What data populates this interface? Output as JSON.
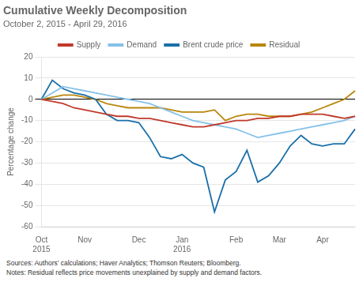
{
  "chart_data": {
    "type": "line",
    "title": "Cumulative Weekly Decomposition",
    "subtitle": "October 2, 2015 - April 29, 2016",
    "ylabel": "Percentage change",
    "annotations": [
      "Sources: Authors’ calculations; Haver Analytics; Thomson Reuters; Bloomberg.",
      "Notes: Residual reflects price movements unexplained by supply and demand factors."
    ],
    "categories": [
      "Oct\n2015",
      null,
      null,
      null,
      "Nov",
      null,
      null,
      null,
      null,
      "Dec",
      null,
      null,
      null,
      "Jan\n2016",
      null,
      null,
      null,
      null,
      "Feb",
      null,
      null,
      null,
      "Mar",
      null,
      null,
      null,
      "Apr",
      null,
      null,
      null
    ],
    "series": [
      {
        "name": "Supply",
        "color": "#c0392b",
        "values": [
          0,
          -1,
          -2,
          -4,
          -5,
          -6,
          -7,
          -8,
          -8,
          -9,
          -9,
          -10,
          -11,
          -12,
          -13,
          -13,
          -12,
          -11,
          -10,
          -10,
          -9,
          -9,
          -8,
          -8,
          -7,
          -7,
          -7,
          -8,
          -9,
          -8
        ]
      },
      {
        "name": "Demand",
        "color": "#85c1e9",
        "values": [
          0,
          3,
          6,
          5,
          4,
          3,
          2,
          1,
          0,
          -1,
          -2,
          -4,
          -6,
          -8,
          -10,
          -11,
          -12,
          -13,
          -14,
          -16,
          -18,
          -17,
          -16,
          -15,
          -14,
          -13,
          -12,
          -11,
          -10,
          -8
        ]
      },
      {
        "name": "Brent crude price",
        "color": "#1a6fa8",
        "values": [
          0,
          9,
          5,
          3,
          2,
          0,
          -7,
          -10,
          -10,
          -11,
          -18,
          -27,
          -28,
          -26,
          -30,
          -32,
          -53,
          -38,
          -34,
          -24,
          -39,
          -36,
          -30,
          -22,
          -17,
          -21,
          -22,
          -21,
          -21,
          -14
        ]
      },
      {
        "name": "Residual",
        "color": "#b8860b",
        "values": [
          0,
          1,
          2,
          2,
          1,
          0,
          -2,
          -3,
          -4,
          -4,
          -4,
          -4,
          -5,
          -6,
          -6,
          -6,
          -5,
          -10,
          -8,
          -7,
          -7,
          -8,
          -8,
          -8,
          -7,
          -6,
          -4,
          -2,
          0,
          4
        ]
      }
    ],
    "ylim": [
      -60,
      20
    ],
    "yticks": [
      -60,
      -50,
      -40,
      -30,
      -20,
      -10,
      0,
      10,
      20
    ],
    "grid": true,
    "legend": "top"
  }
}
